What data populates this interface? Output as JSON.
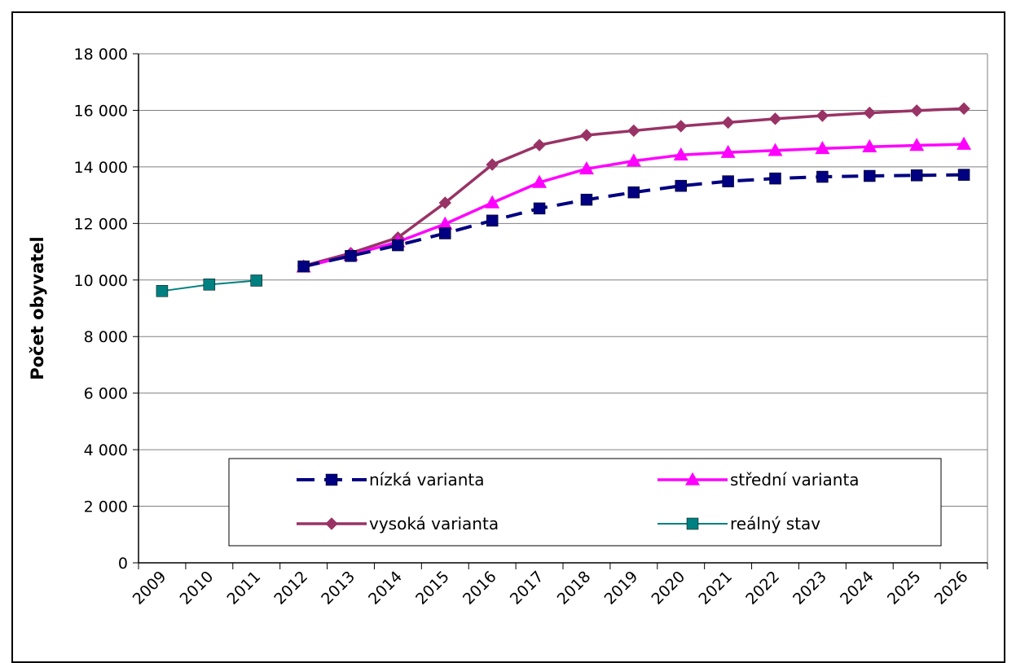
{
  "chart_data": {
    "type": "line",
    "ylabel": "Počet obyvatel",
    "xlabel": "",
    "ylim": [
      0,
      18000
    ],
    "yticks": [
      0,
      2000,
      4000,
      6000,
      8000,
      10000,
      12000,
      14000,
      16000,
      18000
    ],
    "ytick_labels": [
      "0",
      "2 000",
      "4 000",
      "6 000",
      "8 000",
      "10 000",
      "12 000",
      "14 000",
      "16 000",
      "18 000"
    ],
    "categories": [
      "2009",
      "2010",
      "2011",
      "2012",
      "2013",
      "2014",
      "2015",
      "2016",
      "2017",
      "2018",
      "2019",
      "2020",
      "2021",
      "2022",
      "2023",
      "2024",
      "2025",
      "2026"
    ],
    "grid": "horizontal",
    "legend_position": "bottom-inside",
    "series": [
      {
        "name": "nízká varianta",
        "color": "#000080",
        "marker": "square",
        "dash": "dashed",
        "values": [
          null,
          null,
          null,
          10480,
          10850,
          11230,
          11650,
          12100,
          12530,
          12840,
          13100,
          13330,
          13490,
          13590,
          13650,
          13680,
          13700,
          13720
        ]
      },
      {
        "name": "střední varianta",
        "color": "#ff00ff",
        "marker": "triangle",
        "dash": "solid",
        "values": [
          null,
          null,
          null,
          10460,
          10880,
          11350,
          11980,
          12730,
          13450,
          13930,
          14210,
          14420,
          14510,
          14580,
          14650,
          14710,
          14760,
          14800
        ]
      },
      {
        "name": "vysoká varianta",
        "color": "#993366",
        "marker": "diamond",
        "dash": "solid",
        "values": [
          null,
          null,
          null,
          10500,
          10950,
          11500,
          12730,
          14080,
          14770,
          15120,
          15280,
          15440,
          15570,
          15700,
          15810,
          15910,
          15990,
          16060
        ]
      },
      {
        "name": "reálný stav",
        "color": "#008080",
        "marker": "square",
        "dash": "thin",
        "values": [
          9610,
          9840,
          9980,
          null,
          null,
          null,
          null,
          null,
          null,
          null,
          null,
          null,
          null,
          null,
          null,
          null,
          null,
          null
        ]
      }
    ]
  }
}
